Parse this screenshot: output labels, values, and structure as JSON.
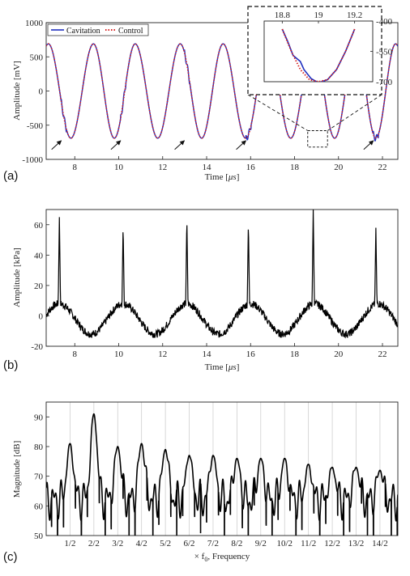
{
  "chart_data": [
    {
      "panel": "(a)",
      "type": "line",
      "xlabel": "Time [μs]",
      "ylabel": "Amplitude [mV]",
      "xlim": [
        6.7,
        22.7
      ],
      "ylim": [
        -1000,
        1000
      ],
      "xticks": [
        8,
        10,
        12,
        14,
        16,
        18,
        20,
        22
      ],
      "yticks": [
        -1000,
        -500,
        0,
        500,
        1000
      ],
      "legend_position": "top-left",
      "series": [
        {
          "name": "Cavitation",
          "color": "#1f2fbf",
          "style": "solid",
          "description_values": {
            "frequency_MHz": 0.345,
            "amplitude_mV": 690,
            "peak_times_us": [
              6.8,
              8.85,
              10.75,
              12.8,
              14.75,
              16.8,
              18.85,
              20.8,
              22.6
            ]
          }
        },
        {
          "name": "Control",
          "color": "#d62020",
          "style": "dotted",
          "description_values": {
            "frequency_MHz": 0.345,
            "amplitude_mV": 690
          }
        }
      ],
      "arrow_troughs_us": [
        7.5,
        10.2,
        13.1,
        15.9,
        21.7
      ],
      "zoom_box": {
        "xlim": [
          18.6,
          19.5
        ],
        "ylim": [
          -820,
          -580
        ]
      },
      "inset": {
        "xlim": [
          18.7,
          19.3
        ],
        "ylim": [
          -700,
          -400
        ],
        "xticks": [
          18.8,
          19,
          19.2
        ],
        "yticks": [
          -400,
          -550,
          -700
        ],
        "control": {
          "x": [
            18.8,
            18.85,
            18.9,
            18.95,
            19.0,
            19.05,
            19.1,
            19.15,
            19.2
          ],
          "y": [
            -440,
            -550,
            -640,
            -690,
            -700,
            -690,
            -640,
            -550,
            -440
          ]
        },
        "cavitation": {
          "x": [
            18.8,
            18.83,
            18.86,
            18.9,
            18.92,
            18.96,
            19.0,
            19.05,
            19.1,
            19.15,
            19.2
          ],
          "y": [
            -440,
            -500,
            -570,
            -600,
            -640,
            -685,
            -705,
            -690,
            -640,
            -550,
            -440
          ]
        }
      }
    },
    {
      "panel": "(b)",
      "type": "line",
      "xlabel": "Time [μs]",
      "ylabel": "Amplitude [kPa]",
      "xlim": [
        6.7,
        22.7
      ],
      "ylim": [
        -20,
        70
      ],
      "xticks": [
        8,
        10,
        12,
        14,
        16,
        18,
        20,
        22
      ],
      "yticks": [
        -20,
        0,
        20,
        40,
        60
      ],
      "series": [
        {
          "name": "",
          "color": "#000000",
          "spikes": {
            "t_us": [
              7.3,
              10.2,
              13.1,
              15.9,
              18.85,
              21.7
            ],
            "peak_kPa": [
              65,
              60,
              65,
              62,
              70,
              58
            ]
          },
          "background": {
            "amplitude_kPa": 10,
            "period_us": 2.9
          }
        }
      ]
    },
    {
      "panel": "(c)",
      "type": "line",
      "xlabel": "× f₀, Frequency",
      "ylabel": "Magnitude [dB]",
      "xlim": [
        0,
        14.75
      ],
      "ylim": [
        50,
        95
      ],
      "xtick_labels": [
        "1/2",
        "2/2",
        "3/2",
        "4/2",
        "5/2",
        "6/2",
        "7/2",
        "8/2",
        "9/2",
        "10/2",
        "11/2",
        "12/2",
        "13/2",
        "14/2"
      ],
      "yticks": [
        50,
        60,
        70,
        80,
        90
      ],
      "grid_x": true,
      "series": [
        {
          "name": "",
          "color": "#000000",
          "peaks": {
            "x_half_orders": [
              1,
              2,
              3,
              4,
              5,
              6,
              7,
              8,
              9,
              10,
              11,
              12,
              13,
              14
            ],
            "magnitude_dB": [
              81,
              91,
              80,
              81,
              79,
              77,
              77,
              76,
              76,
              76,
              74,
              73,
              73,
              72
            ]
          }
        }
      ]
    }
  ],
  "labels": {
    "panel_a": "(a)",
    "panel_b": "(b)",
    "panel_c": "(c)",
    "legend_cav": "Cavitation",
    "legend_ctrl": "Control",
    "a_xlabel_pre": "Time [",
    "a_xlabel_mu": "μs",
    "a_xlabel_post": "]",
    "a_ylabel": "Amplitude [mV]",
    "b_ylabel": "Amplitude [kPa]",
    "c_ylabel": "Magnitude [dB]",
    "c_xlabel_pre": "× f",
    "c_xlabel_sub": "0",
    "c_xlabel_post": ", Frequency"
  }
}
